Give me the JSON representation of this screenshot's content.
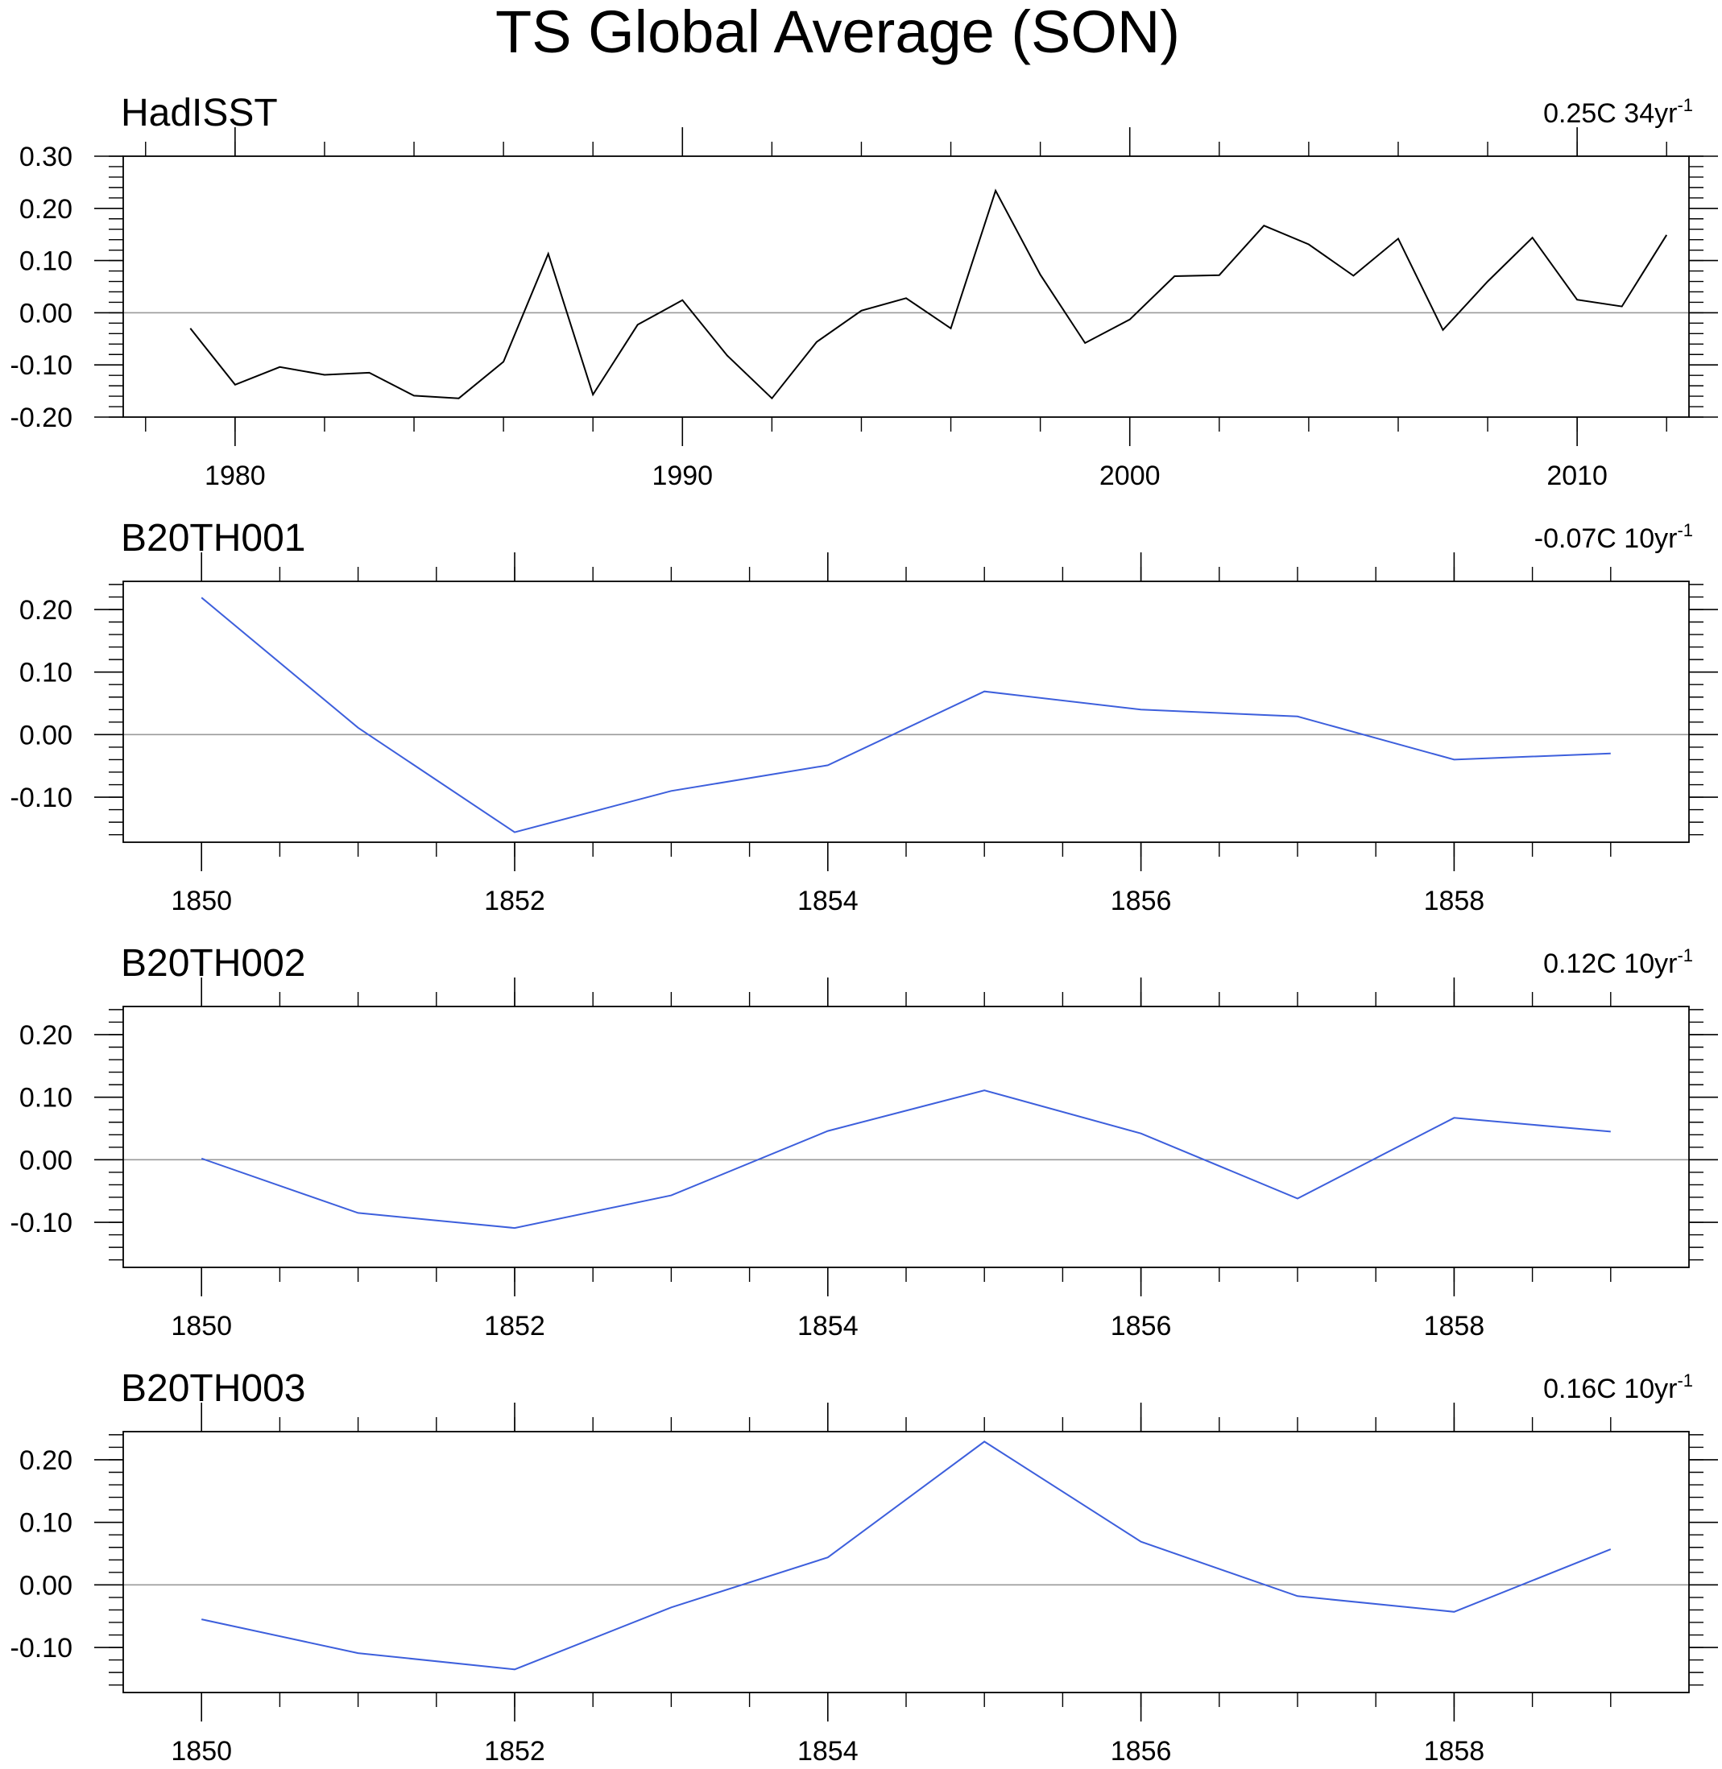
{
  "title": "TS Global Average (SON)",
  "chart_data": [
    {
      "type": "line",
      "panel_label": "HadISST",
      "trend_label": "0.25C 34yr",
      "trend_superscript": "-1",
      "line_color": "#000000",
      "x": [
        1979,
        1980,
        1981,
        1982,
        1983,
        1984,
        1985,
        1986,
        1987,
        1988,
        1989,
        1990,
        1991,
        1992,
        1993,
        1994,
        1995,
        1996,
        1997,
        1998,
        1999,
        2000,
        2001,
        2002,
        2003,
        2004,
        2005,
        2006,
        2007,
        2008,
        2009,
        2010,
        2011,
        2012
      ],
      "values": [
        -0.03,
        -0.138,
        -0.104,
        -0.119,
        -0.115,
        -0.159,
        -0.164,
        -0.094,
        0.113,
        -0.157,
        -0.023,
        0.024,
        -0.082,
        -0.164,
        -0.056,
        0.004,
        0.028,
        -0.03,
        0.234,
        0.073,
        -0.058,
        -0.013,
        0.07,
        0.072,
        0.167,
        0.131,
        0.071,
        0.142,
        -0.033,
        0.06,
        0.144,
        0.025,
        0.012,
        0.149
      ],
      "xlim": [
        1977.5,
        2012.5
      ],
      "ylim": [
        -0.2,
        0.3
      ],
      "xticks": [
        1980,
        1990,
        2000,
        2010
      ],
      "xtick_labels": [
        "1980",
        "1990",
        "2000",
        "2010"
      ],
      "xminor_step": 2,
      "yticks": [
        -0.2,
        -0.1,
        0.0,
        0.1,
        0.2,
        0.3
      ],
      "ytick_labels": [
        "-0.20",
        "-0.10",
        "0.00",
        "0.10",
        "0.20",
        "0.30"
      ],
      "yminor_step": 0.02,
      "zero_line": true
    },
    {
      "type": "line",
      "panel_label": "B20TH001",
      "trend_label": "-0.07C 10yr",
      "trend_superscript": "-1",
      "line_color": "#3d5fdc",
      "x": [
        1850,
        1851,
        1852,
        1853,
        1854,
        1855,
        1856,
        1857,
        1858,
        1859
      ],
      "values": [
        0.219,
        0.011,
        -0.156,
        -0.09,
        -0.049,
        0.069,
        0.04,
        0.029,
        -0.04,
        -0.03
      ],
      "xlim": [
        1849.5,
        1859.5
      ],
      "ylim": [
        -0.172,
        0.245
      ],
      "xticks": [
        1850,
        1852,
        1854,
        1856,
        1858
      ],
      "xtick_labels": [
        "1850",
        "1852",
        "1854",
        "1856",
        "1858"
      ],
      "xminor_step": 0.5,
      "yticks": [
        -0.1,
        0.0,
        0.1,
        0.2
      ],
      "ytick_labels": [
        "-0.10",
        "0.00",
        "0.10",
        "0.20"
      ],
      "yminor_step": 0.02,
      "zero_line": true
    },
    {
      "type": "line",
      "panel_label": "B20TH002",
      "trend_label": "0.12C 10yr",
      "trend_superscript": "-1",
      "line_color": "#3d5fdc",
      "x": [
        1850,
        1851,
        1852,
        1853,
        1854,
        1855,
        1856,
        1857,
        1858,
        1859
      ],
      "values": [
        0.002,
        -0.085,
        -0.109,
        -0.057,
        0.046,
        0.111,
        0.042,
        -0.062,
        0.067,
        0.045
      ],
      "xlim": [
        1849.5,
        1859.5
      ],
      "ylim": [
        -0.172,
        0.245
      ],
      "xticks": [
        1850,
        1852,
        1854,
        1856,
        1858
      ],
      "xtick_labels": [
        "1850",
        "1852",
        "1854",
        "1856",
        "1858"
      ],
      "xminor_step": 0.5,
      "yticks": [
        -0.1,
        0.0,
        0.1,
        0.2
      ],
      "ytick_labels": [
        "-0.10",
        "0.00",
        "0.10",
        "0.20"
      ],
      "yminor_step": 0.02,
      "zero_line": true
    },
    {
      "type": "line",
      "panel_label": "B20TH003",
      "trend_label": "0.16C 10yr",
      "trend_superscript": "-1",
      "line_color": "#3d5fdc",
      "x": [
        1850,
        1851,
        1852,
        1853,
        1854,
        1855,
        1856,
        1857,
        1858,
        1859
      ],
      "values": [
        -0.055,
        -0.109,
        -0.135,
        -0.036,
        0.044,
        0.229,
        0.069,
        -0.018,
        -0.043,
        0.057
      ],
      "xlim": [
        1849.5,
        1859.5
      ],
      "ylim": [
        -0.172,
        0.245
      ],
      "xticks": [
        1850,
        1852,
        1854,
        1856,
        1858
      ],
      "xtick_labels": [
        "1850",
        "1852",
        "1854",
        "1856",
        "1858"
      ],
      "xminor_step": 0.5,
      "yticks": [
        -0.1,
        0.0,
        0.1,
        0.2
      ],
      "ytick_labels": [
        "-0.10",
        "0.00",
        "0.10",
        "0.20"
      ],
      "yminor_step": 0.02,
      "zero_line": true
    }
  ]
}
